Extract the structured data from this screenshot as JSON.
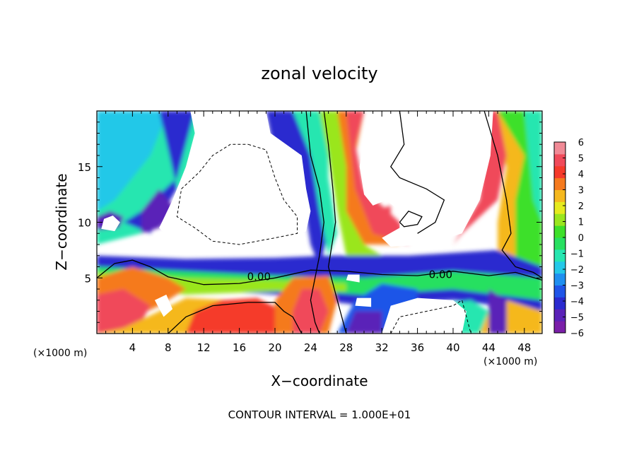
{
  "chart_data": {
    "type": "heatmap",
    "title": "zonal velocity",
    "xlabel": "X−coordinate",
    "ylabel": "Z−coordinate",
    "x_unit_left": "(×1000 m)",
    "x_unit_right": "(×1000 m)",
    "footer": "CONTOUR INTERVAL = 1.000E+01",
    "xlim": [
      0,
      50
    ],
    "ylim": [
      0,
      20
    ],
    "x_ticks": [
      4,
      8,
      12,
      16,
      20,
      24,
      28,
      32,
      36,
      40,
      44,
      48
    ],
    "x_tick_labels": [
      "4",
      "8",
      "12",
      "16",
      "20",
      "24",
      "28",
      "32",
      "36",
      "40",
      "44",
      "48"
    ],
    "y_ticks": [
      5,
      10,
      15
    ],
    "y_tick_labels": [
      "5",
      "10",
      "15"
    ],
    "contour_labels": [
      {
        "text": "0.00",
        "x": 18.2,
        "y": 5.1
      },
      {
        "text": "0.00",
        "x": 38.6,
        "y": 5.3
      }
    ],
    "colorbar": {
      "min": -6,
      "max": 6,
      "tick_labels": [
        "6",
        "5",
        "4",
        "3",
        "2",
        "1",
        "0",
        "−1",
        "−2",
        "−3",
        "−4",
        "−5",
        "−6"
      ],
      "colors": [
        "#7a1fa8",
        "#5a22b8",
        "#2a2acf",
        "#1f55e8",
        "#1f8ff0",
        "#24c8e8",
        "#26e6b0",
        "#28e060",
        "#3ee02a",
        "#9ae61e",
        "#e6ea1e",
        "#f5b81e",
        "#f57a1e",
        "#f53a2a",
        "#f04a5a",
        "#f08a96"
      ],
      "color_positions": [
        -6,
        -5.2,
        -4.4,
        -3.6,
        -2.8,
        -2.0,
        -1.2,
        -0.4,
        0.4,
        1.2,
        2.0,
        2.8,
        3.6,
        4.4,
        5.2,
        6
      ]
    }
  }
}
